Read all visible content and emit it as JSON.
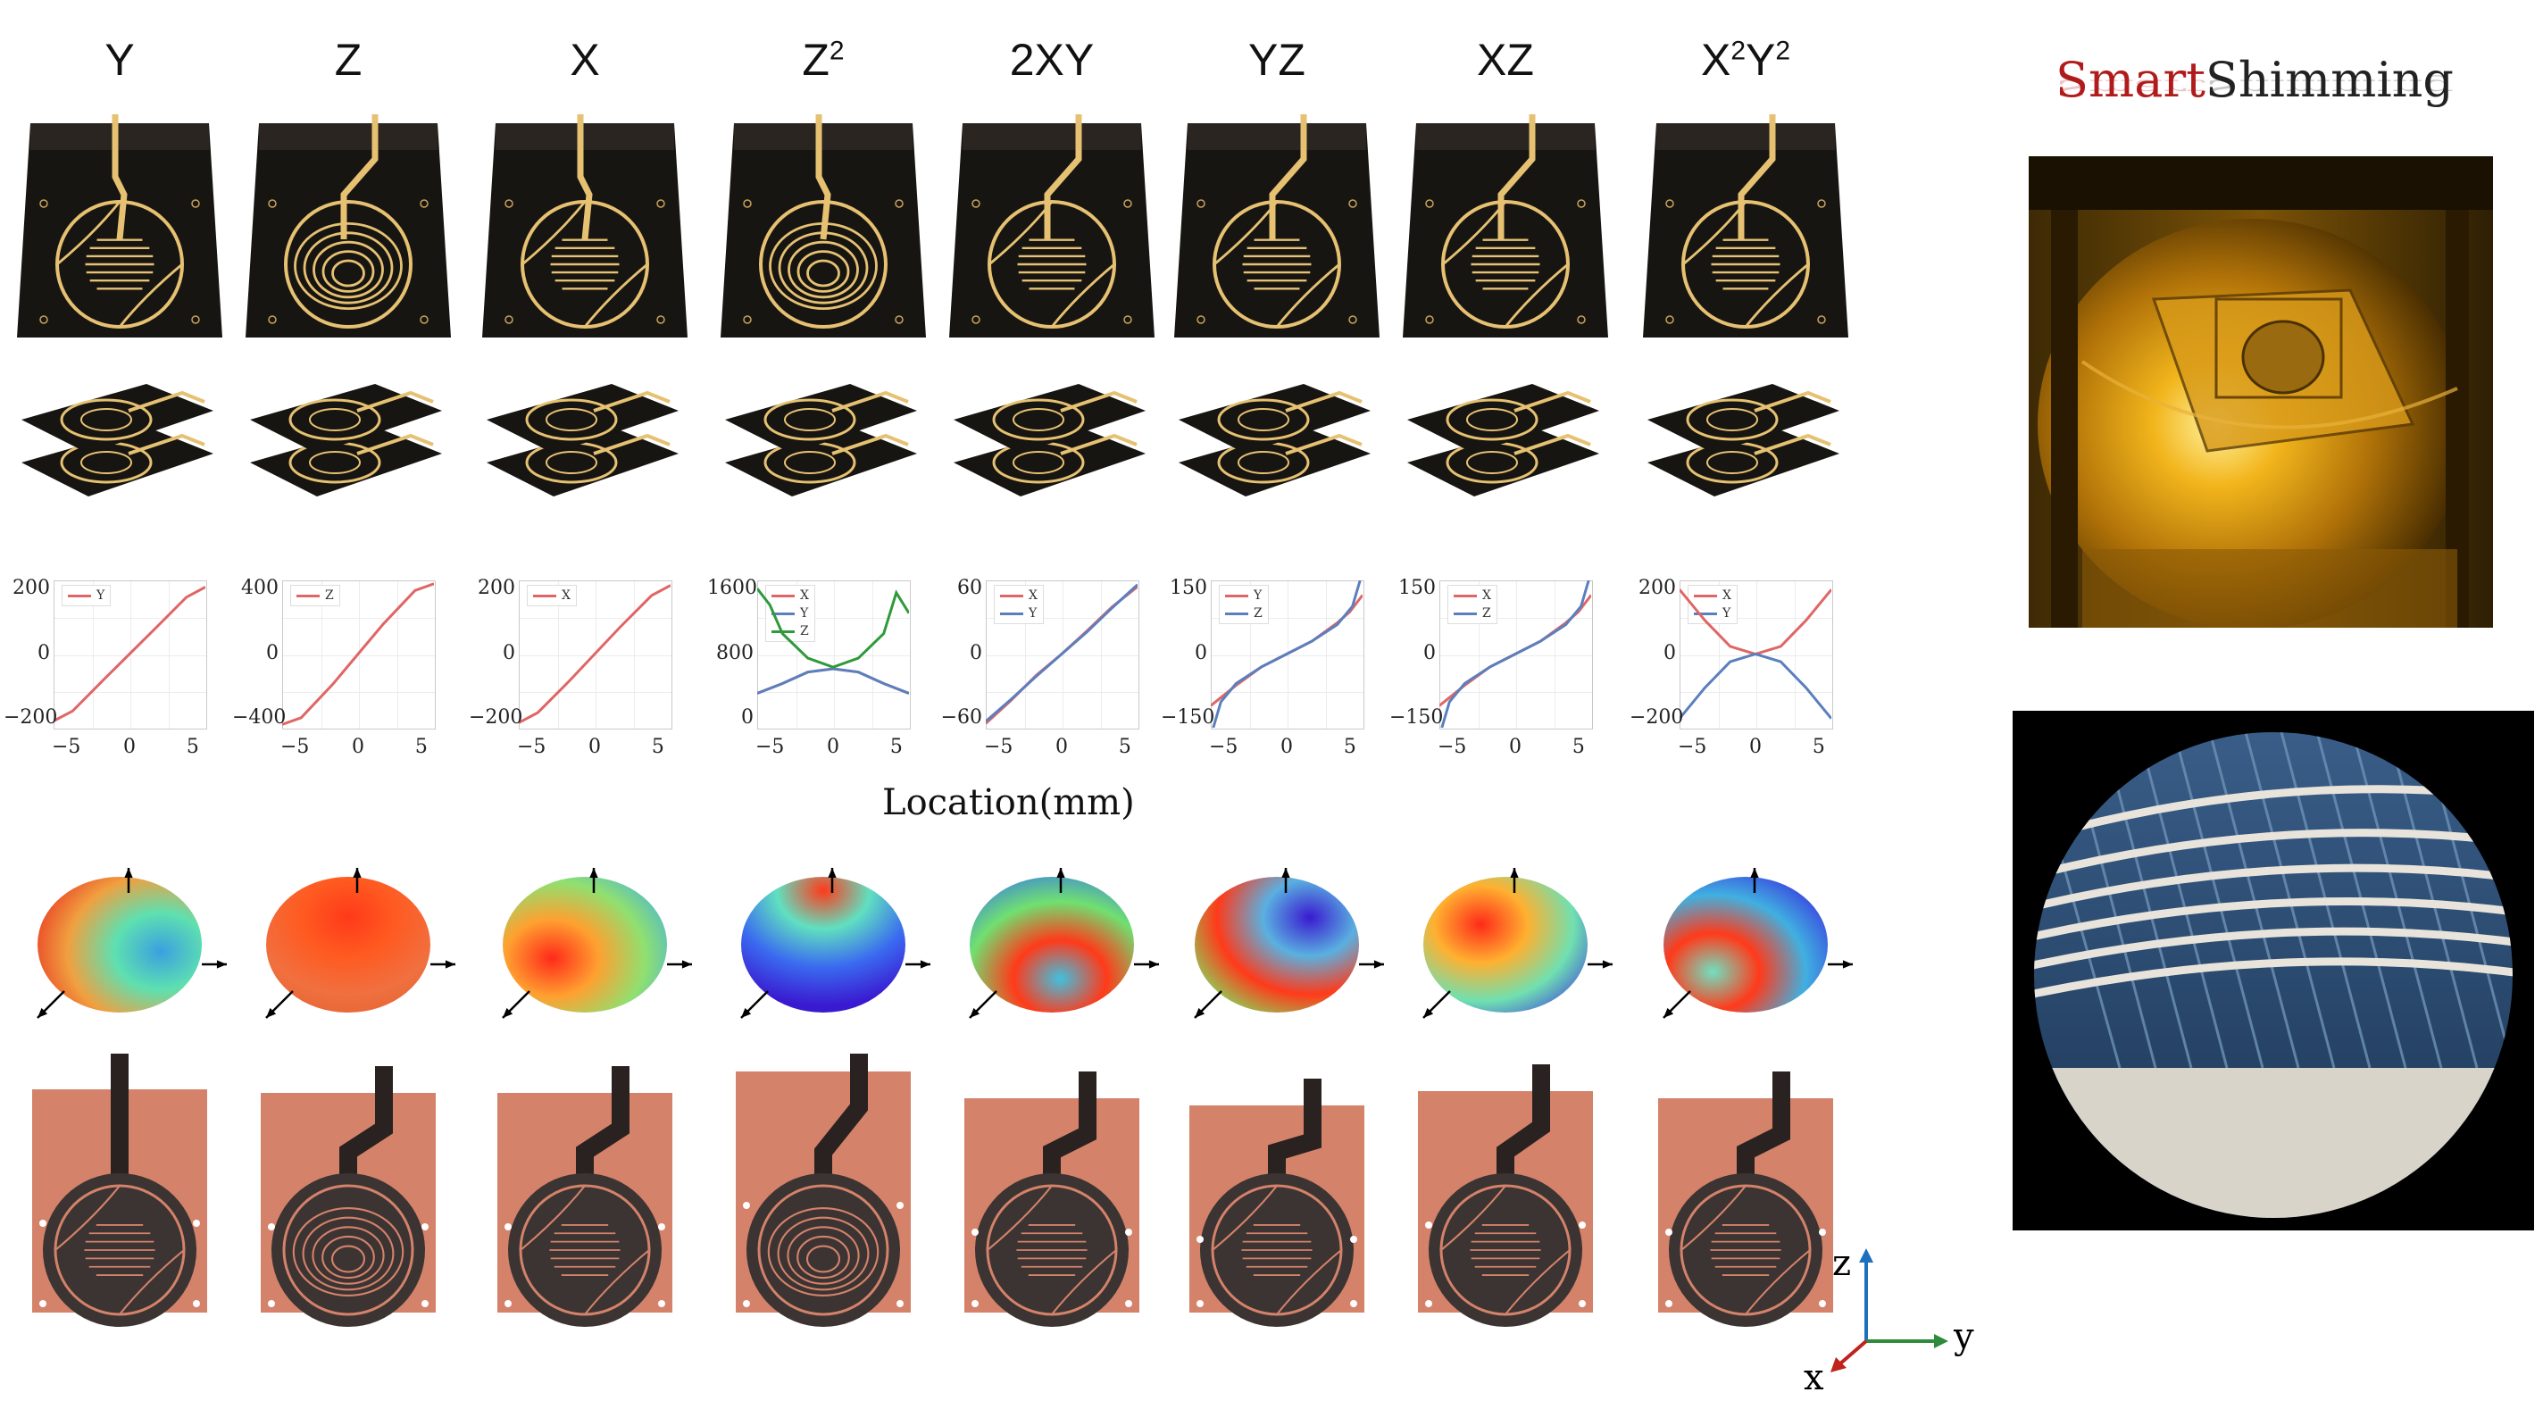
{
  "columns": [
    {
      "key": "Y",
      "label": "Y",
      "sup": ""
    },
    {
      "key": "Z",
      "label": "Z",
      "sup": ""
    },
    {
      "key": "X",
      "label": "X",
      "sup": ""
    },
    {
      "key": "Z2",
      "label": "Z",
      "sup": "2"
    },
    {
      "key": "2XY",
      "label": "2XY",
      "sup": ""
    },
    {
      "key": "YZ",
      "label": "YZ",
      "sup": ""
    },
    {
      "key": "XZ",
      "label": "XZ",
      "sup": ""
    },
    {
      "key": "X2Y2",
      "label": "X",
      "sup": "2",
      "label2": "Y",
      "sup2": "2"
    }
  ],
  "x_axis_label": "Location(mm)",
  "brand": {
    "part1": "Smart",
    "part2": "Shimming",
    "color1": "#b01c1c",
    "color2": "#222222"
  },
  "axes_triad": {
    "z": "z",
    "y": "y",
    "x": "x"
  },
  "colors": {
    "red_series": "#e06666",
    "blue_series": "#5b7fbd",
    "green_series": "#2e9a3a",
    "pcb": "#d4826a",
    "board": "#171512",
    "gold": "#e6c172"
  },
  "chart_data": [
    {
      "type": "line",
      "xlim": [
        -6,
        6
      ],
      "xticks": [
        "−5",
        "0",
        "5"
      ],
      "yticks": [
        "200",
        "0",
        "−200"
      ],
      "ylim": [
        -220,
        220
      ],
      "series": [
        {
          "name": "Y",
          "color": "#e06666",
          "points": [
            [
              -6,
              -200
            ],
            [
              -4.5,
              -170
            ],
            [
              -2,
              -75
            ],
            [
              0,
              0
            ],
            [
              2,
              75
            ],
            [
              4.5,
              170
            ],
            [
              6,
              200
            ]
          ]
        }
      ]
    },
    {
      "type": "line",
      "xlim": [
        -6,
        6
      ],
      "xticks": [
        "−5",
        "0",
        "5"
      ],
      "yticks": [
        "400",
        "0",
        "−400"
      ],
      "ylim": [
        -440,
        440
      ],
      "series": [
        {
          "name": "Z",
          "color": "#e06666",
          "points": [
            [
              -6,
              -420
            ],
            [
              -4.5,
              -380
            ],
            [
              -2,
              -180
            ],
            [
              0,
              0
            ],
            [
              2,
              180
            ],
            [
              4.5,
              380
            ],
            [
              6,
              420
            ]
          ]
        }
      ]
    },
    {
      "type": "line",
      "xlim": [
        -6,
        6
      ],
      "xticks": [
        "−5",
        "0",
        "5"
      ],
      "yticks": [
        "200",
        "0",
        "−200"
      ],
      "ylim": [
        -220,
        220
      ],
      "series": [
        {
          "name": "X",
          "color": "#e06666",
          "points": [
            [
              -6,
              -205
            ],
            [
              -4.5,
              -175
            ],
            [
              -2,
              -80
            ],
            [
              0,
              0
            ],
            [
              2,
              80
            ],
            [
              4.5,
              175
            ],
            [
              6,
              205
            ]
          ]
        }
      ]
    },
    {
      "type": "line",
      "xlim": [
        -6,
        6
      ],
      "xticks": [
        "−5",
        "0",
        "5"
      ],
      "yticks": [
        "1600",
        "800",
        "0"
      ],
      "ylim": [
        0,
        1800
      ],
      "series": [
        {
          "name": "X",
          "color": "#e06666",
          "points": [
            [
              -6,
              420
            ],
            [
              -4,
              540
            ],
            [
              -2,
              680
            ],
            [
              0,
              720
            ],
            [
              2,
              680
            ],
            [
              4,
              540
            ],
            [
              6,
              420
            ]
          ]
        },
        {
          "name": "Y",
          "color": "#5b7fbd",
          "points": [
            [
              -6,
              420
            ],
            [
              -4,
              540
            ],
            [
              -2,
              680
            ],
            [
              0,
              720
            ],
            [
              2,
              680
            ],
            [
              4,
              540
            ],
            [
              6,
              420
            ]
          ]
        },
        {
          "name": "Z",
          "color": "#2e9a3a",
          "points": [
            [
              -6,
              1700
            ],
            [
              -5,
              1500
            ],
            [
              -4,
              1150
            ],
            [
              -2,
              850
            ],
            [
              0,
              740
            ],
            [
              2,
              850
            ],
            [
              4,
              1150
            ],
            [
              5,
              1650
            ],
            [
              6,
              1400
            ]
          ]
        }
      ]
    },
    {
      "type": "line",
      "xlim": [
        -6,
        6
      ],
      "xticks": [
        "−5",
        "0",
        "5"
      ],
      "yticks": [
        "60",
        "0",
        "−60"
      ],
      "ylim": [
        -70,
        70
      ],
      "series": [
        {
          "name": "X",
          "color": "#e06666",
          "points": [
            [
              -6,
              -66
            ],
            [
              -4,
              -44
            ],
            [
              -2,
              -20
            ],
            [
              0,
              0
            ],
            [
              2,
              22
            ],
            [
              4,
              45
            ],
            [
              6,
              64
            ]
          ]
        },
        {
          "name": "Y",
          "color": "#5b7fbd",
          "points": [
            [
              -6,
              -64
            ],
            [
              -4,
              -43
            ],
            [
              -2,
              -21
            ],
            [
              0,
              0
            ],
            [
              2,
              21
            ],
            [
              4,
              44
            ],
            [
              6,
              66
            ]
          ]
        }
      ]
    },
    {
      "type": "line",
      "xlim": [
        -6,
        6
      ],
      "xticks": [
        "−5",
        "0",
        "5"
      ],
      "yticks": [
        "150",
        "0",
        "−150"
      ],
      "ylim": [
        -200,
        200
      ],
      "series": [
        {
          "name": "Y",
          "color": "#e06666",
          "points": [
            [
              -6,
              -140
            ],
            [
              -4,
              -85
            ],
            [
              -2,
              -35
            ],
            [
              0,
              0
            ],
            [
              2,
              35
            ],
            [
              4,
              85
            ],
            [
              5,
              115
            ],
            [
              6,
              160
            ]
          ]
        },
        {
          "name": "Z",
          "color": "#5b7fbd",
          "points": [
            [
              -5.8,
              -200
            ],
            [
              -5.2,
              -130
            ],
            [
              -4,
              -80
            ],
            [
              -2,
              -35
            ],
            [
              0,
              0
            ],
            [
              2,
              35
            ],
            [
              4,
              80
            ],
            [
              5.2,
              130
            ],
            [
              5.8,
              200
            ]
          ]
        }
      ]
    },
    {
      "type": "line",
      "xlim": [
        -6,
        6
      ],
      "xticks": [
        "−5",
        "0",
        "5"
      ],
      "yticks": [
        "150",
        "0",
        "−150"
      ],
      "ylim": [
        -200,
        200
      ],
      "series": [
        {
          "name": "X",
          "color": "#e06666",
          "points": [
            [
              -6,
              -140
            ],
            [
              -4,
              -85
            ],
            [
              -2,
              -35
            ],
            [
              0,
              0
            ],
            [
              2,
              35
            ],
            [
              4,
              85
            ],
            [
              5,
              115
            ],
            [
              6,
              160
            ]
          ]
        },
        {
          "name": "Z",
          "color": "#5b7fbd",
          "points": [
            [
              -5.8,
              -200
            ],
            [
              -5.2,
              -130
            ],
            [
              -4,
              -80
            ],
            [
              -2,
              -35
            ],
            [
              0,
              0
            ],
            [
              2,
              35
            ],
            [
              4,
              80
            ],
            [
              5.2,
              130
            ],
            [
              5.8,
              200
            ]
          ]
        }
      ]
    },
    {
      "type": "line",
      "xlim": [
        -6,
        6
      ],
      "xticks": [
        "−5",
        "0",
        "5"
      ],
      "yticks": [
        "200",
        "0",
        "−200"
      ],
      "ylim": [
        -240,
        240
      ],
      "series": [
        {
          "name": "X",
          "color": "#e06666",
          "points": [
            [
              -6,
              210
            ],
            [
              -4,
              110
            ],
            [
              -2,
              25
            ],
            [
              0,
              0
            ],
            [
              2,
              25
            ],
            [
              4,
              110
            ],
            [
              6,
              210
            ]
          ]
        },
        {
          "name": "Y",
          "color": "#5b7fbd",
          "points": [
            [
              -6,
              -210
            ],
            [
              -4,
              -110
            ],
            [
              -2,
              -25
            ],
            [
              0,
              0
            ],
            [
              2,
              -25
            ],
            [
              4,
              -110
            ],
            [
              6,
              -210
            ]
          ]
        }
      ]
    }
  ]
}
